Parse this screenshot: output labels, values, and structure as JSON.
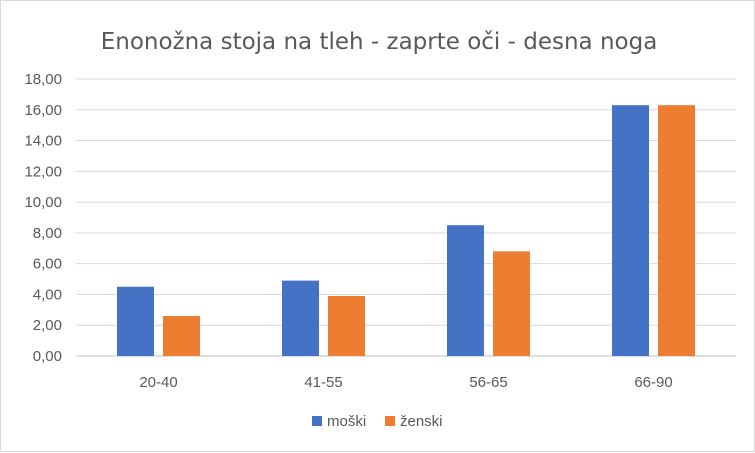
{
  "chart_data": {
    "type": "bar",
    "title": "Enonožna stoja na tleh - zaprte oči - desna noga",
    "categories": [
      "20-40",
      "41-55",
      "56-65",
      "66-90"
    ],
    "series": [
      {
        "name": "moški",
        "color": "#4472C4",
        "values": [
          4.5,
          4.9,
          8.5,
          16.3
        ]
      },
      {
        "name": "ženski",
        "color": "#ED7D31",
        "values": [
          2.6,
          3.9,
          6.8,
          16.3
        ]
      }
    ],
    "ylim": [
      0,
      18
    ],
    "yticks": [
      "0,00",
      "2,00",
      "4,00",
      "6,00",
      "8,00",
      "10,00",
      "12,00",
      "14,00",
      "16,00",
      "18,00"
    ],
    "grid": true,
    "legend_position": "bottom"
  }
}
